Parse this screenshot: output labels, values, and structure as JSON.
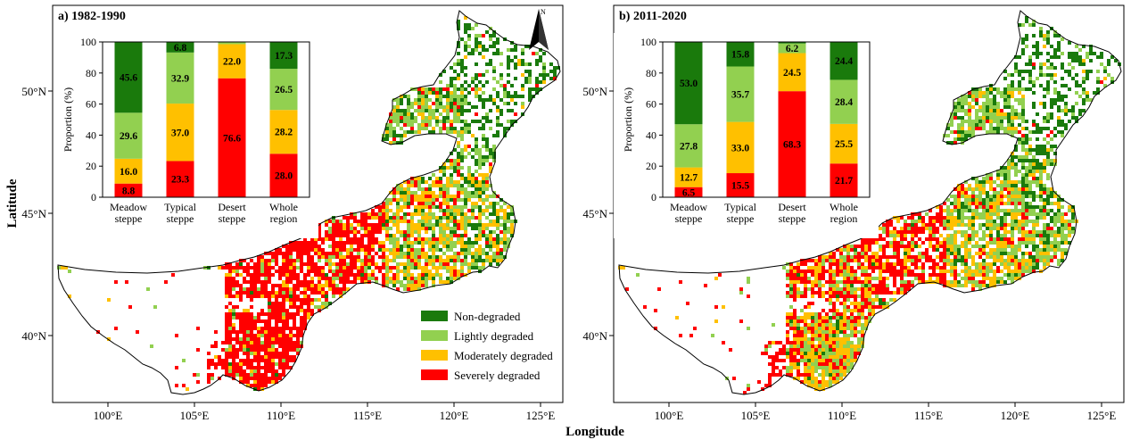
{
  "figure": {
    "x_axis_title": "Longitude",
    "y_axis_title": "Latitude",
    "lon_ticks": [
      "100°E",
      "105°E",
      "110°E",
      "115°E",
      "120°E",
      "125°E"
    ],
    "lat_ticks": [
      "50°N",
      "45°N",
      "40°N"
    ]
  },
  "legend": {
    "items": [
      {
        "label": "Non-degraded",
        "color": "#1a7a0c"
      },
      {
        "label": "Lightly degraded",
        "color": "#92d050"
      },
      {
        "label": "Moderately degraded",
        "color": "#ffc000"
      },
      {
        "label": "Severely degraded",
        "color": "#ff0000"
      }
    ]
  },
  "colors": {
    "non_degraded": "#1a7a0c",
    "lightly_degraded": "#92d050",
    "moderately_degraded": "#ffc000",
    "severely_degraded": "#ff0000"
  },
  "panels": [
    {
      "id": "a",
      "title": "a) 1982-1990"
    },
    {
      "id": "b",
      "title": "b) 2011-2020"
    }
  ],
  "chart_data": [
    {
      "type": "bar",
      "stacked": true,
      "title": "a) 1982-1990",
      "ylabel": "Proportion (%)",
      "ylim": [
        0,
        100
      ],
      "yticks": [
        0,
        20,
        40,
        60,
        80,
        100
      ],
      "categories": [
        [
          "Meadow",
          "steppe"
        ],
        [
          "Typical",
          "steppe"
        ],
        [
          "Desert",
          "steppe"
        ],
        [
          "Whole",
          "region"
        ]
      ],
      "series": [
        {
          "name": "Severely degraded",
          "values": [
            8.8,
            23.3,
            76.6,
            28.0
          ]
        },
        {
          "name": "Moderately degraded",
          "values": [
            16.0,
            37.0,
            22.0,
            28.2
          ]
        },
        {
          "name": "Lightly degraded",
          "values": [
            29.6,
            32.9,
            1.4,
            26.5
          ]
        },
        {
          "name": "Non-degraded",
          "values": [
            45.6,
            6.8,
            0.0,
            17.3
          ]
        }
      ]
    },
    {
      "type": "bar",
      "stacked": true,
      "title": "b) 2011-2020",
      "ylabel": "Proportion (%)",
      "ylim": [
        0,
        100
      ],
      "yticks": [
        0,
        20,
        40,
        60,
        80,
        100
      ],
      "categories": [
        [
          "Meadow",
          "steppe"
        ],
        [
          "Typical",
          "steppe"
        ],
        [
          "Desert",
          "steppe"
        ],
        [
          "Whole",
          "region"
        ]
      ],
      "series": [
        {
          "name": "Severely degraded",
          "values": [
            6.5,
            15.5,
            68.3,
            21.7
          ]
        },
        {
          "name": "Moderately degraded",
          "values": [
            12.7,
            33.0,
            24.5,
            25.5
          ]
        },
        {
          "name": "Lightly degraded",
          "values": [
            27.8,
            35.7,
            6.2,
            28.4
          ]
        },
        {
          "name": "Non-degraded",
          "values": [
            53.0,
            15.8,
            1.0,
            24.4
          ]
        }
      ]
    }
  ]
}
